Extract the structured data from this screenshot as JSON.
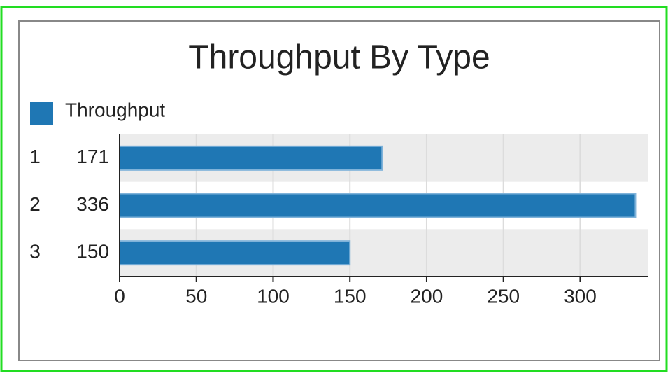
{
  "chart_data": {
    "type": "bar",
    "orientation": "horizontal",
    "title": "Throughput By Type",
    "categories": [
      "1",
      "2",
      "3"
    ],
    "series": [
      {
        "name": "Throughput",
        "color": "#1f77b4",
        "values": [
          171,
          336,
          150
        ]
      }
    ],
    "xlim": [
      0,
      344
    ],
    "xticks": [
      0,
      50,
      100,
      150,
      200,
      250,
      300
    ],
    "grid": true,
    "legend": "top-left"
  }
}
